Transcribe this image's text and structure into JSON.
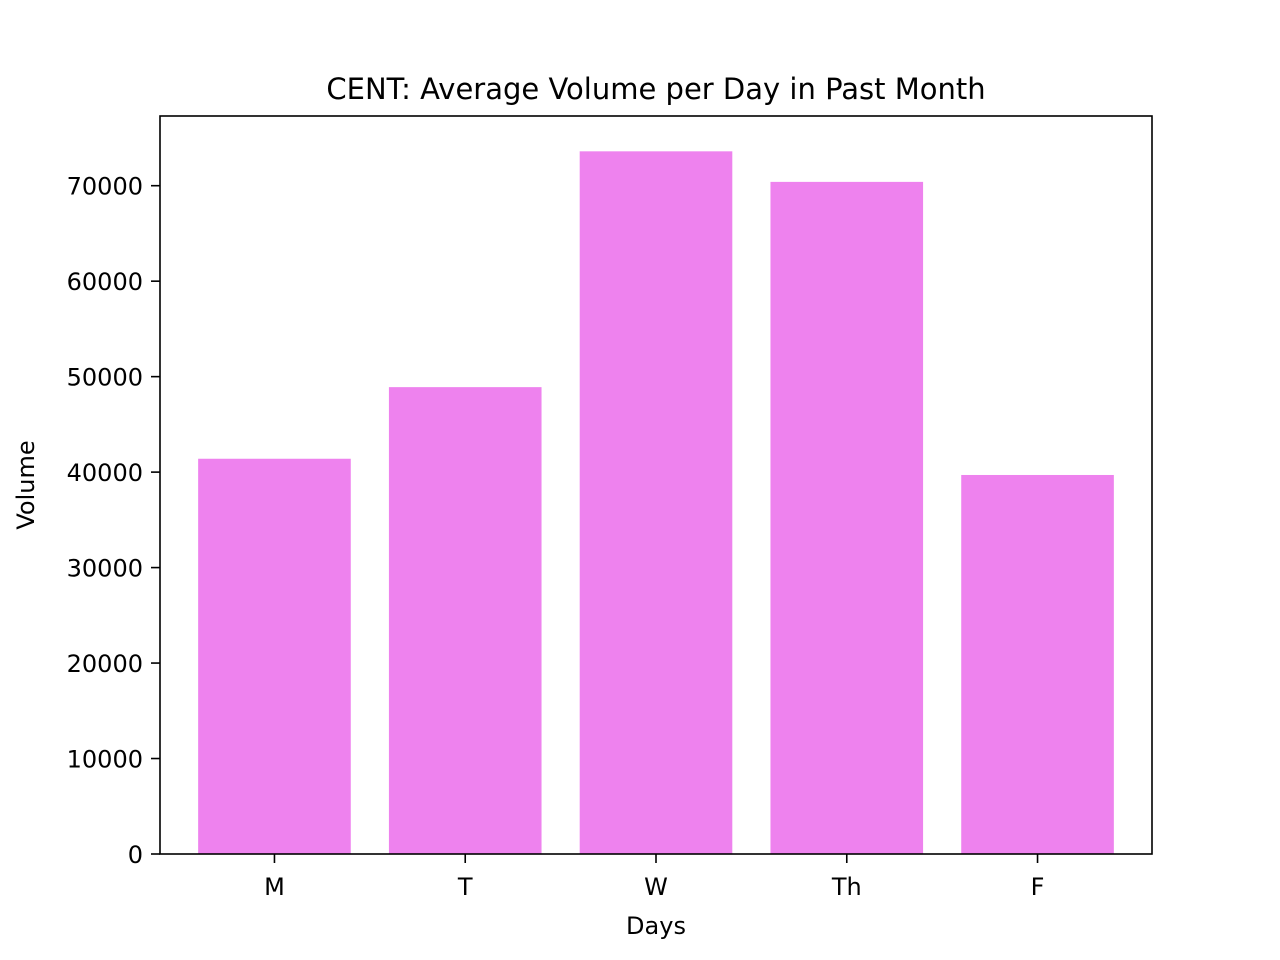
{
  "chart_data": {
    "type": "bar",
    "title": "CENT: Average Volume per Day in Past Month",
    "xlabel": "Days",
    "ylabel": "Volume",
    "categories": [
      "M",
      "T",
      "W",
      "Th",
      "F"
    ],
    "values": [
      41400,
      48900,
      73600,
      70400,
      39700
    ],
    "ylim": [
      0,
      77300
    ],
    "yticks": [
      0,
      10000,
      20000,
      30000,
      40000,
      50000,
      60000,
      70000
    ],
    "ytick_labels": [
      "0",
      "10000",
      "20000",
      "30000",
      "40000",
      "50000",
      "60000",
      "70000"
    ],
    "bar_color": "#ee82ee",
    "grid": false,
    "legend": "none"
  }
}
